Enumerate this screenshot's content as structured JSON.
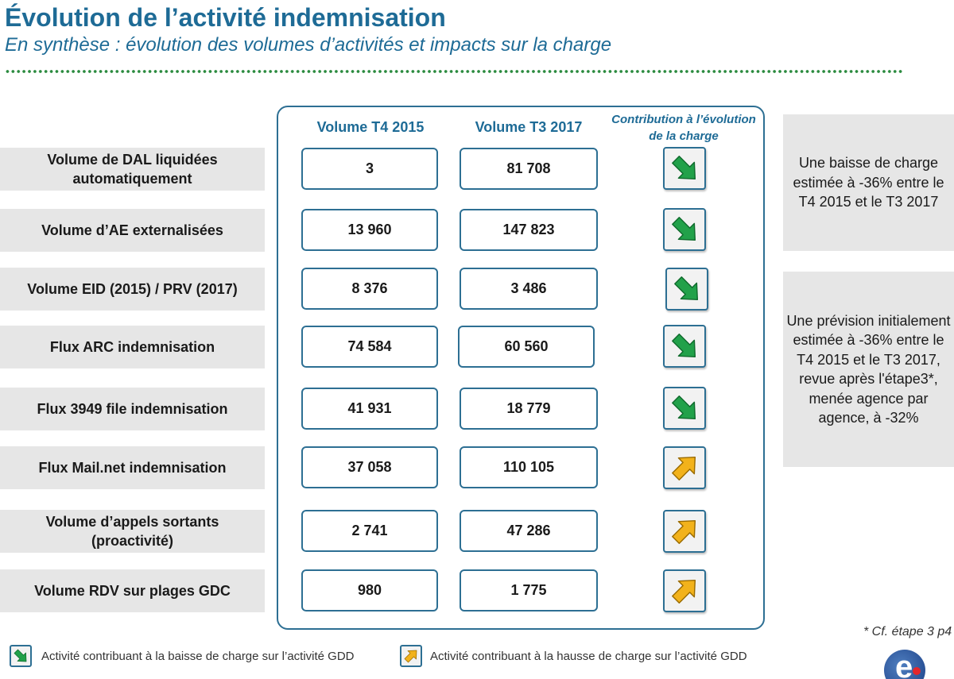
{
  "title": "Évolution de l’activité indemnisation",
  "subtitle": "En synthèse  : évolution des volumes d’activités et impacts sur la charge",
  "columns": {
    "col1": "Volume T4 2015",
    "col2": "Volume T3 2017",
    "col3": "Contribution à l’évolution de la charge"
  },
  "rows": [
    {
      "label": "Volume de DAL liquidées automatiquement",
      "t4_2015": "3",
      "t3_2017": "81 708",
      "trend": "down"
    },
    {
      "label": "Volume d’AE externalisées",
      "t4_2015": "13 960",
      "t3_2017": "147 823",
      "trend": "down"
    },
    {
      "label": "Volume EID (2015) / PRV (2017)",
      "t4_2015": "8 376",
      "t3_2017": "3 486",
      "trend": "down"
    },
    {
      "label": "Flux ARC indemnisation",
      "t4_2015": "74 584",
      "t3_2017": "60 560",
      "trend": "down"
    },
    {
      "label": "Flux 3949 file indemnisation",
      "t4_2015": "41 931",
      "t3_2017": "18 779",
      "trend": "down"
    },
    {
      "label": "Flux Mail.net indemnisation",
      "t4_2015": "37 058",
      "t3_2017": "110 105",
      "trend": "up"
    },
    {
      "label": "Volume d’appels sortants (proactivité)",
      "t4_2015": "2 741",
      "t3_2017": "47 286",
      "trend": "up"
    },
    {
      "label": "Volume RDV sur plages GDC",
      "t4_2015": "980",
      "t3_2017": "1 775",
      "trend": "up"
    }
  ],
  "notes": {
    "note1": "Une baisse de charge estimée à -36% entre le T4 2015 et le T3 2017",
    "note2": "Une prévision initialement estimée à -36% entre le T4 2015 et le T3 2017, revue après l'étape3*, menée agence par agence, à -32%"
  },
  "footnote": "* Cf. étape 3 p4",
  "legend": {
    "down": "Activité contribuant à la baisse de charge sur l’activité GDD",
    "up": "Activité contribuant à la hausse de charge sur l’activité GDD"
  },
  "colors": {
    "title": "#1e6b96",
    "frame": "#2d6f93",
    "down_arrow": "#22a14a",
    "up_arrow": "#f2b21b",
    "label_bg": "#e6e6e6"
  },
  "icons": {
    "down": "green-down-right-arrow-icon",
    "up": "yellow-up-right-arrow-icon",
    "logo": "pole-emploi-logo"
  }
}
